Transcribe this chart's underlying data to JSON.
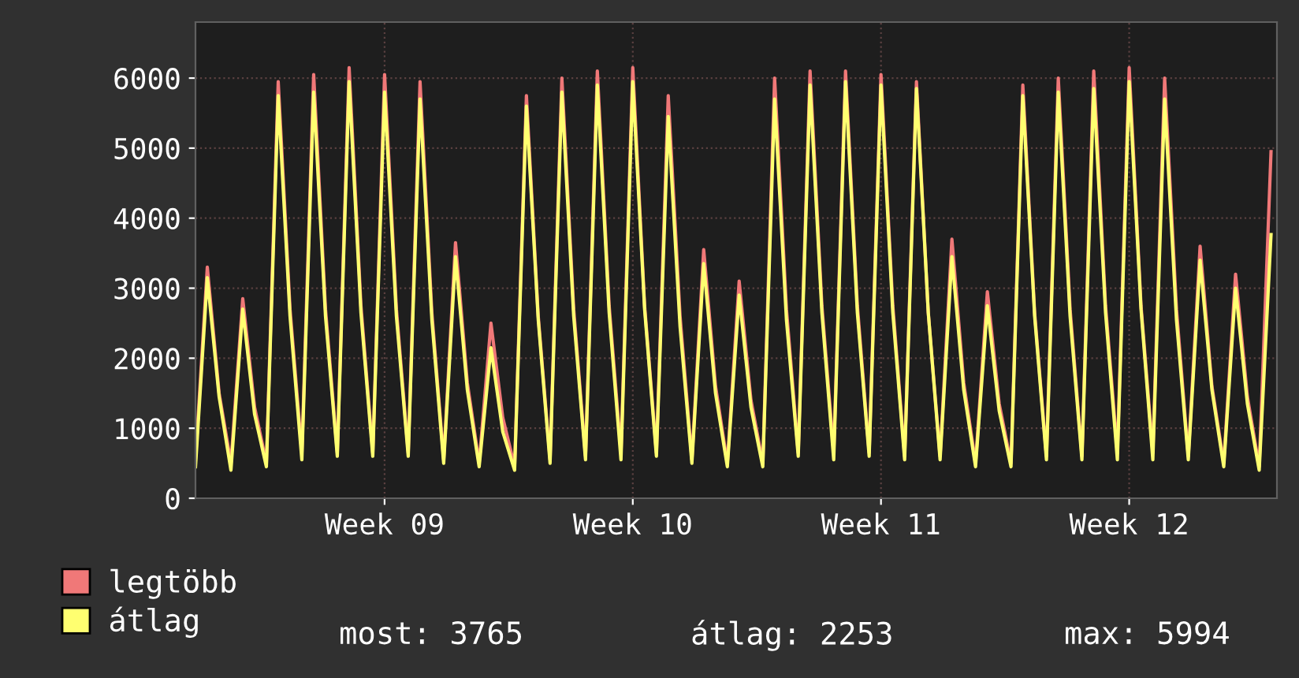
{
  "chart_data": {
    "type": "line",
    "categories": [
      null,
      null,
      null,
      null,
      null,
      null,
      null,
      null,
      null,
      null,
      null,
      null,
      null,
      null,
      null,
      null,
      "Week 09",
      null,
      null,
      null,
      null,
      null,
      null,
      null,
      null,
      null,
      null,
      null,
      null,
      null,
      null,
      null,
      null,
      null,
      null,
      null,
      null,
      "Week 10",
      null,
      null,
      null,
      null,
      null,
      null,
      null,
      null,
      null,
      null,
      null,
      null,
      null,
      null,
      null,
      null,
      null,
      null,
      null,
      null,
      "Week 11",
      null,
      null,
      null,
      null,
      null,
      null,
      null,
      null,
      null,
      null,
      null,
      null,
      null,
      null,
      null,
      null,
      null,
      null,
      null,
      null,
      "Week 12",
      null,
      null,
      null,
      null,
      null,
      null,
      null,
      null,
      null,
      null,
      null,
      null
    ],
    "series": [
      {
        "name": "legtöbb",
        "color": "#f07878",
        "values": [
          550,
          3300,
          1500,
          500,
          2850,
          1300,
          500,
          5950,
          2700,
          650,
          6050,
          2700,
          650,
          6150,
          2750,
          650,
          6050,
          2700,
          650,
          5950,
          2650,
          550,
          3650,
          1650,
          500,
          2500,
          1150,
          450,
          5750,
          2600,
          550,
          6000,
          2700,
          600,
          6100,
          2750,
          650,
          6150,
          2750,
          650,
          5750,
          2600,
          550,
          3550,
          1600,
          500,
          3100,
          1400,
          500,
          6000,
          2700,
          650,
          6100,
          2750,
          650,
          6100,
          2750,
          650,
          6050,
          2750,
          600,
          5950,
          2650,
          600,
          3700,
          1650,
          500,
          2950,
          1350,
          500,
          5900,
          2650,
          600,
          6000,
          2700,
          600,
          6100,
          2750,
          650,
          6150,
          2750,
          650,
          6000,
          2700,
          600,
          3600,
          1600,
          500,
          3200,
          1450,
          450,
          4950
        ]
      },
      {
        "name": "átlag",
        "color": "#ffff70",
        "values": [
          450,
          3150,
          1450,
          400,
          2700,
          1200,
          450,
          5750,
          2600,
          550,
          5800,
          2600,
          600,
          5950,
          2650,
          600,
          5800,
          2600,
          600,
          5700,
          2550,
          500,
          3450,
          1550,
          450,
          2150,
          950,
          400,
          5600,
          2550,
          500,
          5800,
          2600,
          550,
          5900,
          2650,
          550,
          5950,
          2700,
          600,
          5450,
          2450,
          500,
          3350,
          1500,
          450,
          2900,
          1300,
          450,
          5700,
          2550,
          600,
          5900,
          2650,
          550,
          5950,
          2650,
          600,
          5900,
          2650,
          550,
          5850,
          2650,
          550,
          3450,
          1550,
          450,
          2750,
          1250,
          450,
          5750,
          2600,
          550,
          5800,
          2600,
          550,
          5850,
          2650,
          550,
          5950,
          2700,
          550,
          5700,
          2550,
          550,
          3400,
          1550,
          450,
          3000,
          1350,
          400,
          3765
        ]
      }
    ],
    "ylim": [
      0,
      6800
    ],
    "yticks": [
      0,
      1000,
      2000,
      3000,
      4000,
      5000,
      6000
    ],
    "grid": true,
    "legend": "bottom",
    "line_style": "solid",
    "marker": "none",
    "annotations": [
      "most: 3765",
      "átlag: 2253",
      "max: 5994"
    ]
  }
}
